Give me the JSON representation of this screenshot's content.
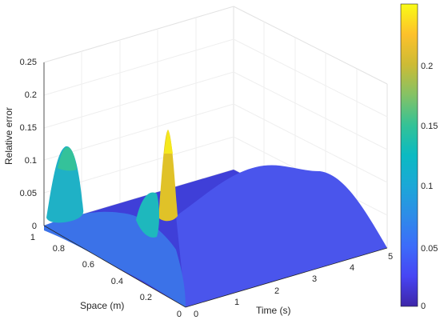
{
  "chart_data": {
    "type": "surface",
    "title": "",
    "xlabel": "Time (s)",
    "ylabel": "Space (m)",
    "zlabel": "Relative error",
    "xlim": [
      0,
      5
    ],
    "ylim": [
      0,
      1
    ],
    "zlim": [
      0,
      0.25
    ],
    "x_ticks": [
      "0",
      "1",
      "2",
      "3",
      "4",
      "5"
    ],
    "y_ticks": [
      "0",
      "0.2",
      "0.4",
      "0.6",
      "0.8",
      "1"
    ],
    "z_ticks": [
      "0",
      "0.05",
      "0.1",
      "0.15",
      "0.2",
      "0.25"
    ],
    "colorbar": {
      "colormap": "parula",
      "range": [
        0,
        0.23
      ],
      "ticks": [
        "0",
        "0.05",
        "0.1",
        "0.15",
        "0.2"
      ]
    },
    "grid": true,
    "approximate_features": [
      {
        "time": 0.0,
        "space": 0.9,
        "error": 0.12
      },
      {
        "time": 0.0,
        "space": 0.25,
        "error": 0.18
      },
      {
        "time": 1.5,
        "space": 0.6,
        "error": 0.06
      },
      {
        "time": 3.0,
        "space": 0.45,
        "error": 0.07
      },
      {
        "time": 4.5,
        "space": 0.0,
        "error": 0.0
      }
    ]
  }
}
